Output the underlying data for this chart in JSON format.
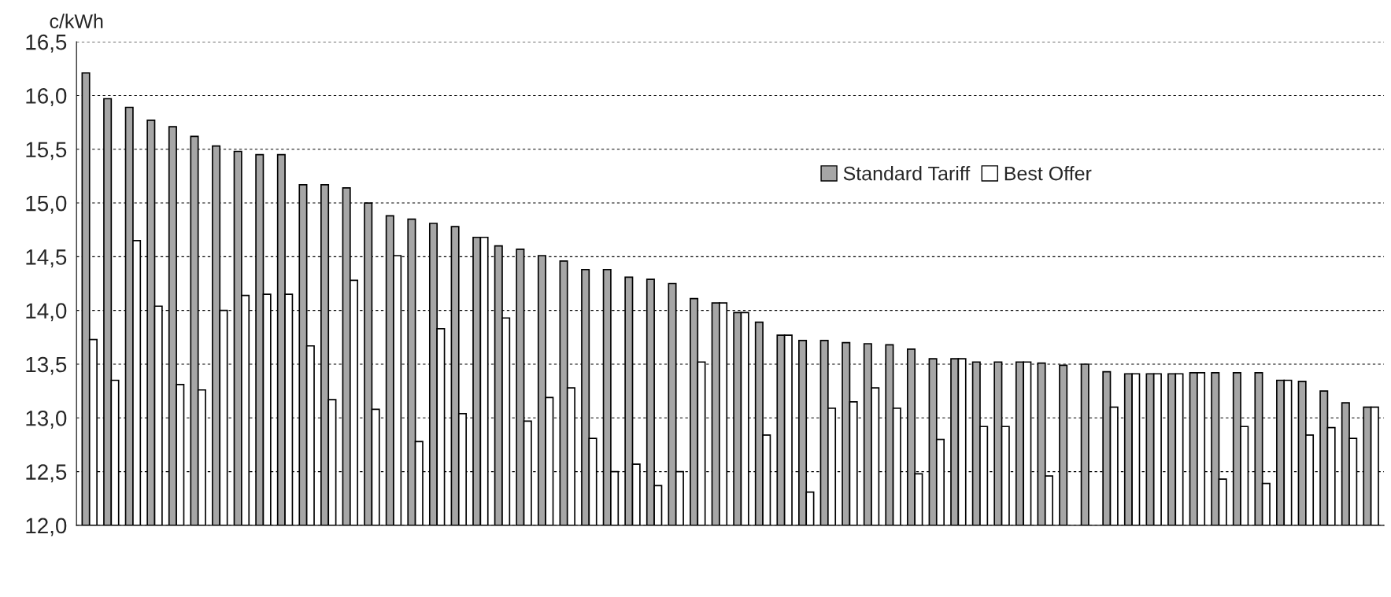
{
  "chart_data": {
    "type": "bar",
    "ylabel": "c/kWh",
    "categories": [
      null,
      null,
      null,
      null,
      null,
      null,
      null,
      null,
      null,
      null,
      null,
      null,
      null,
      null,
      null,
      null,
      null,
      null,
      null,
      null,
      null,
      null,
      null,
      null,
      null,
      null,
      null,
      null,
      null,
      null,
      null,
      null,
      null,
      null,
      null,
      null,
      null,
      null,
      null,
      null,
      null,
      null,
      null,
      null,
      null,
      null,
      null,
      null,
      null,
      null,
      null,
      null,
      null,
      null,
      null,
      null,
      null,
      null,
      null,
      null
    ],
    "series": [
      {
        "name": "Standard Tariff",
        "color": "#a6a6a6",
        "values": [
          16.21,
          15.97,
          15.89,
          15.77,
          15.71,
          15.62,
          15.53,
          15.48,
          15.45,
          15.45,
          15.17,
          15.17,
          15.14,
          15.0,
          14.88,
          14.85,
          14.81,
          14.78,
          14.68,
          14.6,
          14.57,
          14.51,
          14.46,
          14.38,
          14.38,
          14.31,
          14.29,
          14.25,
          14.11,
          14.07,
          13.98,
          13.89,
          13.77,
          13.72,
          13.72,
          13.7,
          13.69,
          13.68,
          13.64,
          13.55,
          13.55,
          13.52,
          13.52,
          13.52,
          13.51,
          13.49,
          13.5,
          13.43,
          13.41,
          13.41,
          13.41,
          13.42,
          13.42,
          13.42,
          13.42,
          13.35,
          13.34,
          13.25,
          13.14,
          13.1
        ]
      },
      {
        "name": "Best Offer",
        "color": "#ffffff",
        "values": [
          13.73,
          13.35,
          14.65,
          14.04,
          13.31,
          13.26,
          14.0,
          14.14,
          14.15,
          14.15,
          13.67,
          13.17,
          14.28,
          13.08,
          14.51,
          12.78,
          13.83,
          13.04,
          14.68,
          13.93,
          12.97,
          13.19,
          13.28,
          12.81,
          12.5,
          12.57,
          12.37,
          12.5,
          13.52,
          14.07,
          13.98,
          12.84,
          13.77,
          12.31,
          13.09,
          13.15,
          13.28,
          13.09,
          12.48,
          12.8,
          13.55,
          12.92,
          12.92,
          13.52,
          12.46,
          null,
          null,
          13.1,
          13.41,
          13.41,
          13.41,
          13.42,
          12.43,
          12.92,
          12.39,
          13.35,
          12.84,
          12.91,
          12.81,
          13.1
        ]
      }
    ],
    "ylim": [
      12.0,
      16.5
    ],
    "yticks": [
      {
        "value": 12.0,
        "label": "12,0"
      },
      {
        "value": 12.5,
        "label": "12,5"
      },
      {
        "value": 13.0,
        "label": "13,0"
      },
      {
        "value": 13.5,
        "label": "13,5"
      },
      {
        "value": 14.0,
        "label": "14,0"
      },
      {
        "value": 14.5,
        "label": "14,5"
      },
      {
        "value": 15.0,
        "label": "15,0"
      },
      {
        "value": 15.5,
        "label": "15,5"
      },
      {
        "value": 16.0,
        "label": "16,0"
      },
      {
        "value": 16.5,
        "label": "16,5"
      }
    ],
    "grid": "y",
    "legend": "top right",
    "tick_labels": "y"
  }
}
